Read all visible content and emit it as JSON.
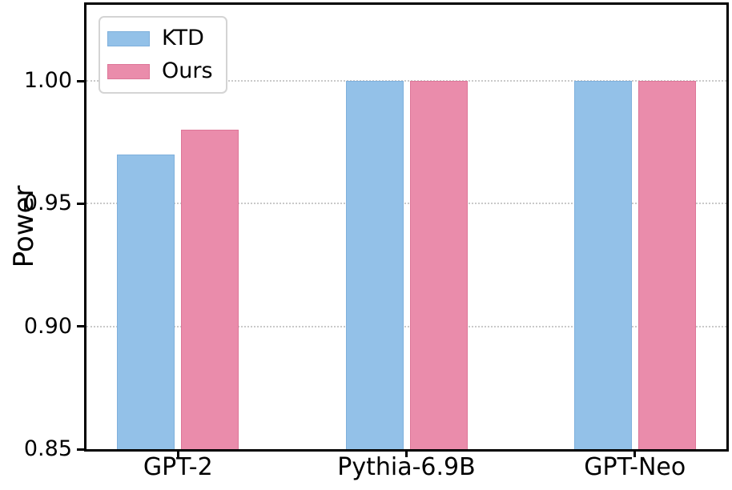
{
  "chart_data": {
    "type": "bar",
    "title": "",
    "xlabel": "",
    "ylabel": "Power",
    "categories": [
      "GPT-2",
      "Pythia-6.9B",
      "GPT-Neo"
    ],
    "series": [
      {
        "name": "KTD",
        "color": "#93c1e8",
        "edge_color": "#7fb0dc",
        "values": [
          0.97,
          1.0,
          1.0
        ]
      },
      {
        "name": "Ours",
        "color": "#ea8cab",
        "edge_color": "#dd7698",
        "values": [
          0.98,
          1.0,
          1.0
        ]
      }
    ],
    "ylim": [
      0.85,
      1.031
    ],
    "yticks": [
      "0.85",
      "0.90",
      "0.95",
      "1.00"
    ],
    "grid": "horizontal-dotted",
    "legend_position": "upper-left",
    "colors": {
      "spine": "#000000",
      "gridline": "#c9c9c9",
      "background": "#ffffff"
    }
  }
}
